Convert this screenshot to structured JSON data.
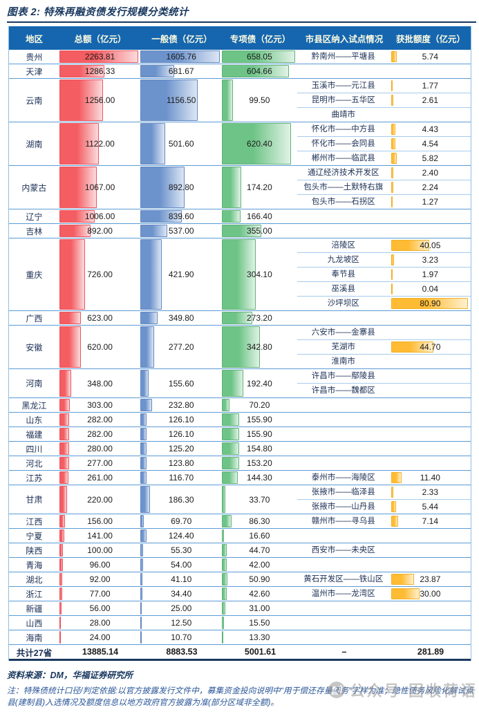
{
  "title": "图表 2: 特殊再融资债发行规模分类统计",
  "chart_data": {
    "type": "table",
    "title": "图表 2: 特殊再融资债发行规模分类统计",
    "columns": [
      "地区",
      "总额（亿元）",
      "一般债（亿元）",
      "专项债（亿元）",
      "市县区纳入试点情况",
      "获批额度（亿元）"
    ],
    "max": {
      "total": 2263.81,
      "general": 1605.76,
      "special": 658.05,
      "quota": 80.9
    },
    "regions": [
      {
        "name": "贵州",
        "total": "2263.81",
        "general": "1605.76",
        "special": "658.05",
        "pilots": [
          {
            "name": "黔南州——平塘县",
            "quota": "5.74"
          }
        ]
      },
      {
        "name": "天津",
        "total": "1286.33",
        "general": "681.67",
        "special": "604.66",
        "pilots": []
      },
      {
        "name": "云南",
        "total": "1256.00",
        "general": "1156.50",
        "special": "99.50",
        "pilots": [
          {
            "name": "玉溪市——元江县",
            "quota": "1.77"
          },
          {
            "name": "昆明市——五华区",
            "quota": "2.61"
          },
          {
            "name": "曲靖市",
            "quota": ""
          }
        ]
      },
      {
        "name": "湖南",
        "total": "1122.00",
        "general": "501.60",
        "special": "620.40",
        "pilots": [
          {
            "name": "怀化市——中方县",
            "quota": "4.43"
          },
          {
            "name": "怀化市——会同县",
            "quota": "4.54"
          },
          {
            "name": "郴州市——临武县",
            "quota": "5.82"
          }
        ]
      },
      {
        "name": "内蒙古",
        "total": "1067.00",
        "general": "892.80",
        "special": "174.20",
        "pilots": [
          {
            "name": "通辽经济技术开发区",
            "quota": "2.40"
          },
          {
            "name": "包头市——土默特右旗",
            "quota": "2.24"
          },
          {
            "name": "包头市——石拐区",
            "quota": "1.27"
          }
        ]
      },
      {
        "name": "辽宁",
        "total": "1006.00",
        "general": "839.60",
        "special": "166.40",
        "pilots": []
      },
      {
        "name": "吉林",
        "total": "892.00",
        "general": "537.00",
        "special": "355.00",
        "pilots": []
      },
      {
        "name": "重庆",
        "total": "726.00",
        "general": "421.90",
        "special": "304.10",
        "pilots": [
          {
            "name": "涪陵区",
            "quota": "40.05"
          },
          {
            "name": "九龙坡区",
            "quota": "3.23"
          },
          {
            "name": "奉节县",
            "quota": "1.97"
          },
          {
            "name": "巫溪县",
            "quota": "0.04"
          },
          {
            "name": "沙坪坝区",
            "quota": "80.90"
          }
        ]
      },
      {
        "name": "广西",
        "total": "623.00",
        "general": "349.80",
        "special": "273.20",
        "pilots": []
      },
      {
        "name": "安徽",
        "total": "620.00",
        "general": "277.20",
        "special": "342.80",
        "pilots": [
          {
            "name": "六安市——金寨县",
            "quota": ""
          },
          {
            "name": "芜湖市",
            "quota": "44.70"
          },
          {
            "name": "淮南市",
            "quota": ""
          }
        ]
      },
      {
        "name": "河南",
        "total": "348.00",
        "general": "155.60",
        "special": "192.40",
        "pilots": [
          {
            "name": "许昌市——鄢陵县",
            "quota": ""
          },
          {
            "name": "许昌市——魏都区",
            "quota": ""
          }
        ]
      },
      {
        "name": "黑龙江",
        "total": "303.00",
        "general": "232.80",
        "special": "70.20",
        "pilots": []
      },
      {
        "name": "山东",
        "total": "282.00",
        "general": "126.10",
        "special": "155.90",
        "pilots": []
      },
      {
        "name": "福建",
        "total": "282.00",
        "general": "126.10",
        "special": "155.90",
        "pilots": []
      },
      {
        "name": "四川",
        "total": "280.00",
        "general": "125.20",
        "special": "154.80",
        "pilots": []
      },
      {
        "name": "河北",
        "total": "277.00",
        "general": "123.80",
        "special": "153.20",
        "pilots": []
      },
      {
        "name": "江苏",
        "total": "261.00",
        "general": "116.70",
        "special": "144.30",
        "pilots": [
          {
            "name": "泰州市——海陵区",
            "quota": "11.40"
          }
        ]
      },
      {
        "name": "甘肃",
        "total": "220.00",
        "general": "186.30",
        "special": "33.70",
        "pilots": [
          {
            "name": "张掖市——临泽县",
            "quota": "2.33"
          },
          {
            "name": "张掖市——山丹县",
            "quota": "5.44"
          }
        ]
      },
      {
        "name": "江西",
        "total": "156.00",
        "general": "69.70",
        "special": "86.30",
        "pilots": [
          {
            "name": "赣州市——寻乌县",
            "quota": "7.14"
          }
        ]
      },
      {
        "name": "宁夏",
        "total": "141.00",
        "general": "124.40",
        "special": "16.60",
        "pilots": []
      },
      {
        "name": "陕西",
        "total": "100.00",
        "general": "55.30",
        "special": "44.70",
        "pilots": [
          {
            "name": "西安市——未央区",
            "quota": ""
          }
        ]
      },
      {
        "name": "青海",
        "total": "96.00",
        "general": "54.00",
        "special": "42.00",
        "pilots": []
      },
      {
        "name": "湖北",
        "total": "92.00",
        "general": "41.10",
        "special": "50.90",
        "pilots": [
          {
            "name": "黄石开发区——铁山区",
            "quota": "23.87"
          }
        ]
      },
      {
        "name": "浙江",
        "total": "77.00",
        "general": "34.40",
        "special": "42.60",
        "pilots": [
          {
            "name": "温州市——龙湾区",
            "quota": "30.00"
          }
        ]
      },
      {
        "name": "新疆",
        "total": "56.00",
        "general": "25.00",
        "special": "31.00",
        "pilots": []
      },
      {
        "name": "山西",
        "total": "28.00",
        "general": "12.50",
        "special": "15.50",
        "pilots": []
      },
      {
        "name": "海南",
        "total": "24.00",
        "general": "10.70",
        "special": "13.30",
        "pilots": []
      }
    ],
    "total_row": {
      "name": "共计27省",
      "total": "13885.14",
      "general": "8883.53",
      "special": "5001.61",
      "pilot": "–",
      "quota": "281.89"
    }
  },
  "footer": {
    "source": "资料来源：DM，华福证券研究所",
    "note": "注：特殊债统计口径/判定依据:以官方披露发行文件中，募集资金投向说明中“用于偿还存量债务”字样为准；隐性债务风险化解试点县(建制县)入选情况及额度信息以地方政府官方披露为准(部分区域非全额)。"
  },
  "watermark": {
    "text": "公众号·固收荷语"
  },
  "colors": {
    "header_bg": "#1566AF",
    "header_text": "#FFFCE1",
    "title_navy": "#17375E",
    "row_line": "#5B9BD5",
    "sub_line": "#A6CBEC",
    "note_blue": "#2A5699",
    "bar_red": "#F45D62",
    "bar_blue": "#6D93CC",
    "bar_green": "#6EC487",
    "bar_orange": "#FFBB33"
  }
}
